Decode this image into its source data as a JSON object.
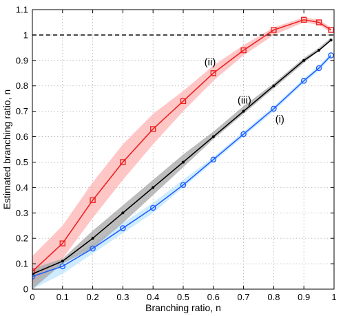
{
  "chart_data": {
    "type": "line",
    "xlabel": "Branching ratio, n",
    "ylabel": "Estimated branching ratio, n",
    "xlim": [
      0,
      1
    ],
    "ylim": [
      0,
      1.1
    ],
    "grid": true,
    "x_ticks": [
      0,
      0.1,
      0.2,
      0.3,
      0.4,
      0.5,
      0.6,
      0.7,
      0.8,
      0.9,
      1
    ],
    "y_ticks": [
      0,
      0.1,
      0.2,
      0.3,
      0.4,
      0.5,
      0.6,
      0.7,
      0.8,
      0.9,
      1,
      1.1
    ],
    "x_tick_labels": [
      "0",
      "0.1",
      "0.2",
      "0.3",
      "0.4",
      "0.5",
      "0.6",
      "0.7",
      "0.8",
      "0.9",
      "1"
    ],
    "y_tick_labels": [
      "0",
      "0.1",
      "0.2",
      "0.3",
      "0.4",
      "0.5",
      "0.6",
      "0.7",
      "0.8",
      "0.9",
      "1",
      "1.1"
    ],
    "reference_line": {
      "y": 1,
      "style": "dashed",
      "color": "#000000"
    },
    "series": [
      {
        "name": "(i)",
        "color": "#1f5fff",
        "band_color": "#bfe6ff",
        "marker": "circle",
        "x": [
          0,
          0.1,
          0.2,
          0.3,
          0.4,
          0.5,
          0.6,
          0.7,
          0.8,
          0.9,
          0.95,
          0.99
        ],
        "y": [
          0.05,
          0.09,
          0.16,
          0.24,
          0.32,
          0.41,
          0.51,
          0.61,
          0.71,
          0.82,
          0.87,
          0.92
        ],
        "lower": [
          0.0,
          0.06,
          0.14,
          0.22,
          0.3,
          0.4,
          0.5,
          0.6,
          0.7,
          0.81,
          0.86,
          0.91
        ],
        "upper": [
          0.1,
          0.11,
          0.18,
          0.26,
          0.34,
          0.43,
          0.52,
          0.62,
          0.72,
          0.83,
          0.88,
          0.93
        ]
      },
      {
        "name": "(ii)",
        "color": "#ee2222",
        "band_color": "#ffb3b3",
        "marker": "square",
        "x": [
          0,
          0.1,
          0.2,
          0.3,
          0.4,
          0.5,
          0.6,
          0.7,
          0.8,
          0.9,
          0.95,
          0.99
        ],
        "y": [
          0.07,
          0.18,
          0.35,
          0.5,
          0.63,
          0.74,
          0.85,
          0.94,
          1.02,
          1.06,
          1.05,
          1.02
        ],
        "lower": [
          0.02,
          0.12,
          0.28,
          0.43,
          0.57,
          0.7,
          0.82,
          0.92,
          1.0,
          1.05,
          1.04,
          1.01
        ],
        "upper": [
          0.13,
          0.25,
          0.42,
          0.57,
          0.69,
          0.78,
          0.88,
          0.96,
          1.03,
          1.07,
          1.06,
          1.03
        ]
      },
      {
        "name": "(iii)",
        "color": "#000000",
        "band_color": "#a6a6a6",
        "marker": "dot",
        "x": [
          0,
          0.1,
          0.2,
          0.3,
          0.4,
          0.5,
          0.6,
          0.7,
          0.8,
          0.9,
          0.95,
          0.99
        ],
        "y": [
          0.06,
          0.11,
          0.2,
          0.3,
          0.4,
          0.5,
          0.6,
          0.7,
          0.8,
          0.9,
          0.94,
          0.98
        ],
        "lower": [
          0.0,
          0.1,
          0.16,
          0.26,
          0.37,
          0.48,
          0.59,
          0.69,
          0.79,
          0.89,
          0.94,
          0.98
        ],
        "upper": [
          0.08,
          0.12,
          0.23,
          0.33,
          0.43,
          0.53,
          0.62,
          0.72,
          0.81,
          0.91,
          0.95,
          0.99
        ]
      }
    ],
    "annotations": [
      {
        "text": "(ii)",
        "x": 0.57,
        "y": 0.88
      },
      {
        "text": "(iii)",
        "x": 0.68,
        "y": 0.73
      },
      {
        "text": "(i)",
        "x": 0.805,
        "y": 0.655
      }
    ]
  }
}
